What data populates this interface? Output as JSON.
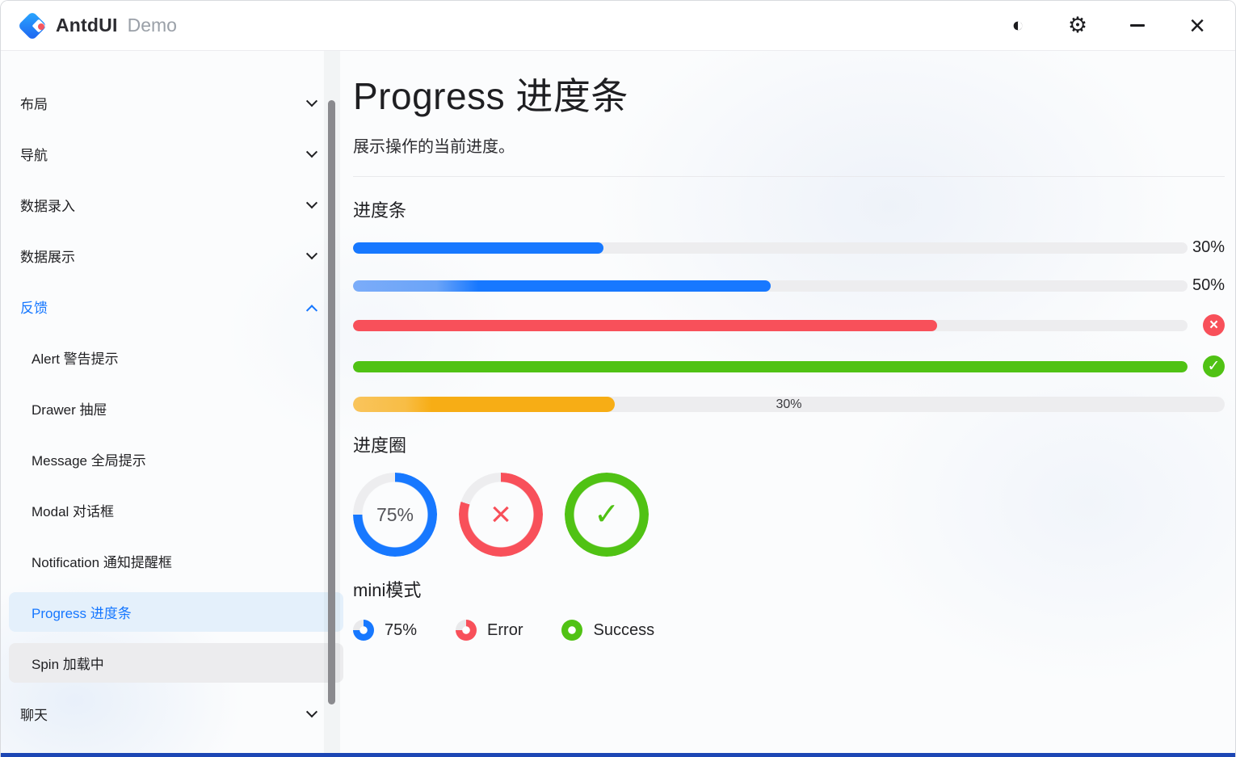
{
  "titlebar": {
    "title": "AntdUI",
    "subtitle": "Demo",
    "icons": {
      "theme_contrast": "◐",
      "settings_gear": "⚙",
      "close": "×"
    }
  },
  "sidebar": {
    "items": [
      {
        "label": "布局",
        "chevron": "down",
        "level": 0
      },
      {
        "label": "导航",
        "chevron": "down",
        "level": 0
      },
      {
        "label": "数据录入",
        "chevron": "down",
        "level": 0
      },
      {
        "label": "数据展示",
        "chevron": "down",
        "level": 0
      },
      {
        "label": "反馈",
        "chevron": "up",
        "level": 0,
        "state": "active-group"
      },
      {
        "label": "Alert 警告提示",
        "level": 1
      },
      {
        "label": "Drawer 抽屉",
        "level": 1
      },
      {
        "label": "Message 全局提示",
        "level": 1
      },
      {
        "label": "Modal 对话框",
        "level": 1
      },
      {
        "label": "Notification 通知提醒框",
        "level": 1
      },
      {
        "label": "Progress 进度条",
        "level": 1,
        "state": "selected"
      },
      {
        "label": "Spin 加载中",
        "level": 1,
        "state": "hovered"
      },
      {
        "label": "聊天",
        "chevron": "down",
        "level": 0
      }
    ]
  },
  "page": {
    "title": "Progress 进度条",
    "description": "展示操作的当前进度。"
  },
  "sections": {
    "line": {
      "heading": "进度条",
      "bars": [
        {
          "percent": 30,
          "color": "#1778ff",
          "label": "30%",
          "label_position": "right"
        },
        {
          "percent": 50,
          "color": "#1778ff",
          "label": "50%",
          "label_position": "right",
          "gradient": true
        },
        {
          "percent": 70,
          "color": "#f8505a",
          "status": "error",
          "icon": "×"
        },
        {
          "percent": 100,
          "color": "#50c214",
          "status": "success",
          "icon": "✓"
        },
        {
          "percent": 30,
          "color": "#f7ad15",
          "label": "30%",
          "label_position": "inside",
          "gradient": true
        }
      ]
    },
    "circle": {
      "heading": "进度圈",
      "items": [
        {
          "percent": 75,
          "color": "#1778ff",
          "text": "75%"
        },
        {
          "percent": 80,
          "color": "#f8505a",
          "status": "error",
          "icon": "×"
        },
        {
          "percent": 100,
          "color": "#50c214",
          "status": "success",
          "icon": "✓"
        }
      ]
    },
    "mini": {
      "heading": "mini模式",
      "items": [
        {
          "percent": 75,
          "color": "#1778ff",
          "label": "75%"
        },
        {
          "percent": 75,
          "color": "#f8505a",
          "label": "Error"
        },
        {
          "percent": 100,
          "color": "#50c214",
          "label": "Success"
        }
      ]
    }
  }
}
